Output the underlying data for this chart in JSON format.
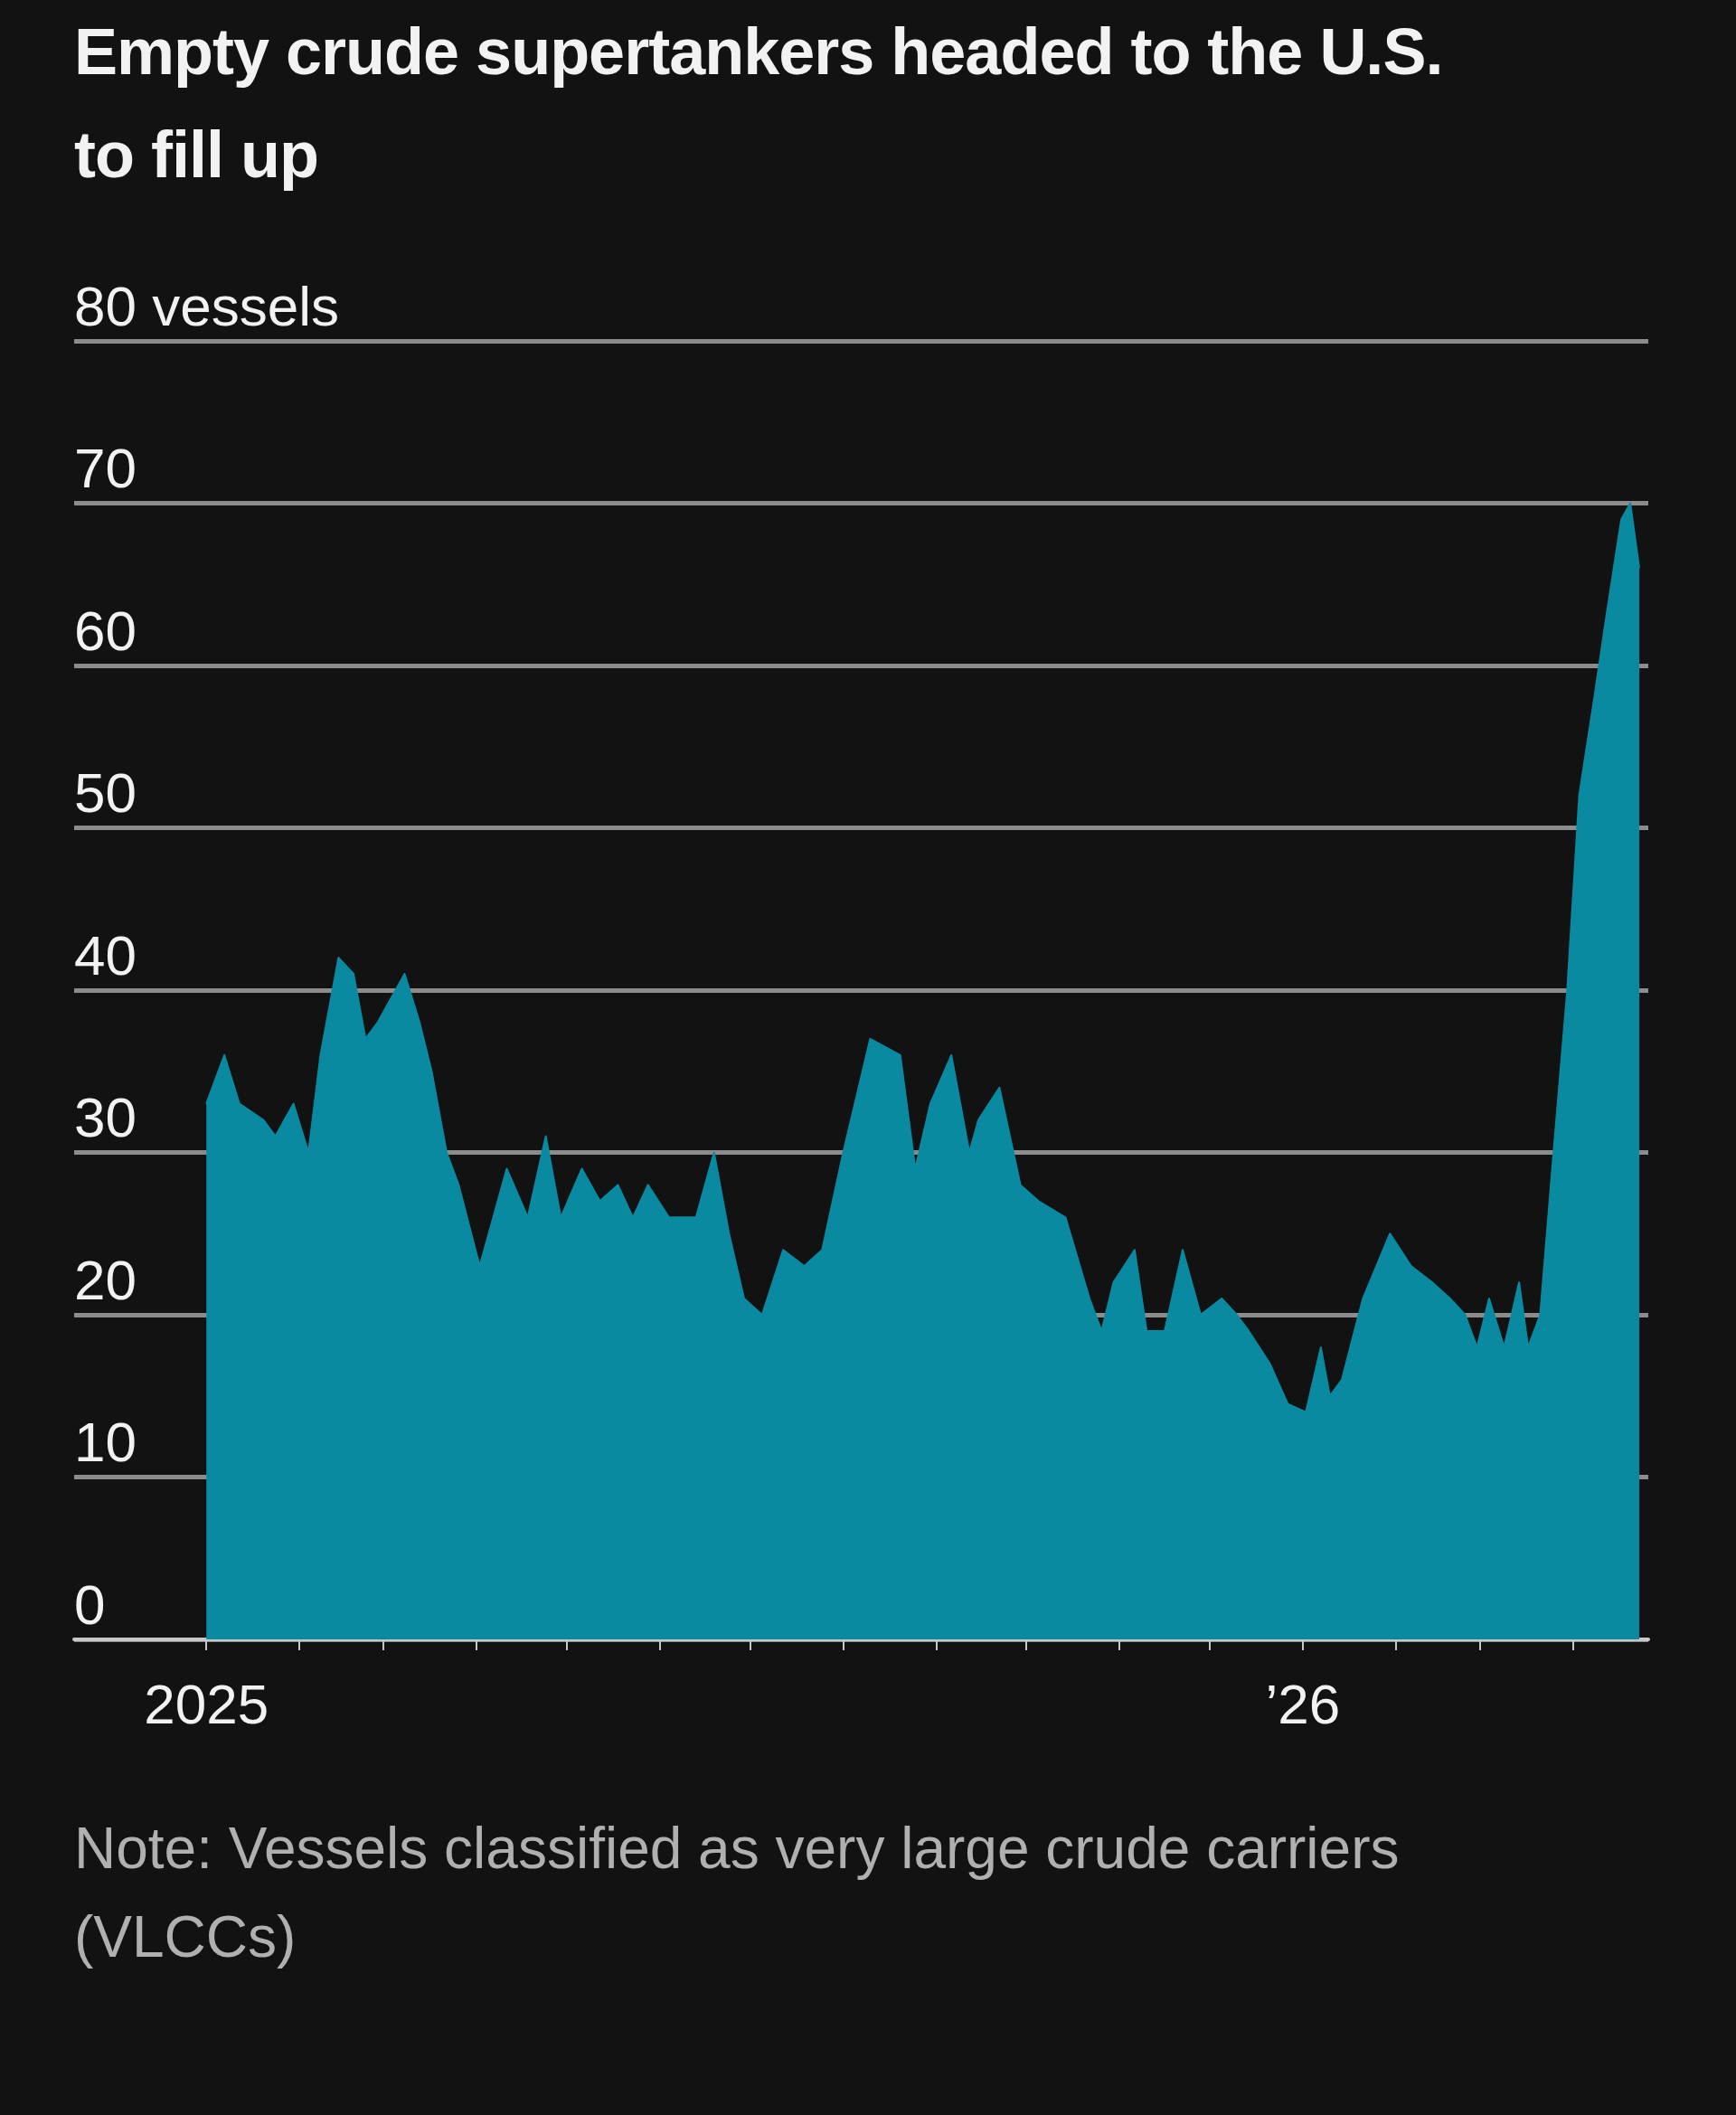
{
  "chart_data": {
    "type": "area",
    "title": "Empty crude supertankers headed to the U.S. to fill up",
    "annotations": [
      "Note: Vessels classified as very large crude carriers (VLCCs)"
    ],
    "x": [
      "2025-01-01",
      "2025-01-07",
      "2025-01-12",
      "2025-01-20",
      "2025-01-24",
      "2025-01-30",
      "2025-02-04",
      "2025-02-08",
      "2025-02-14",
      "2025-02-19",
      "2025-02-23",
      "2025-02-27",
      "2025-03-08",
      "2025-03-13",
      "2025-03-17",
      "2025-03-22",
      "2025-03-26",
      "2025-04-02",
      "2025-04-11",
      "2025-04-18",
      "2025-04-24",
      "2025-04-29",
      "2025-05-06",
      "2025-05-12",
      "2025-05-18",
      "2025-05-23",
      "2025-05-28",
      "2025-06-04",
      "2025-06-13",
      "2025-06-19",
      "2025-06-24",
      "2025-06-29",
      "2025-07-05",
      "2025-07-12",
      "2025-07-19",
      "2025-07-25",
      "2025-08-01",
      "2025-08-10",
      "2025-08-20",
      "2025-08-25",
      "2025-08-30",
      "2025-09-06",
      "2025-09-12",
      "2025-09-15",
      "2025-09-22",
      "2025-09-29",
      "2025-10-05",
      "2025-10-14",
      "2025-10-22",
      "2025-10-26",
      "2025-10-30",
      "2025-11-06",
      "2025-11-10",
      "2025-11-16",
      "2025-11-22",
      "2025-11-28",
      "2025-12-05",
      "2025-12-10",
      "2025-12-14",
      "2025-12-21",
      "2025-12-27",
      "2026-01-02",
      "2026-01-07",
      "2026-01-10",
      "2026-01-14",
      "2026-01-21",
      "2026-01-30",
      "2026-02-06",
      "2026-02-13",
      "2026-02-19",
      "2026-02-24",
      "2026-02-28",
      "2026-03-04",
      "2026-03-09",
      "2026-03-14",
      "2026-03-17",
      "2026-03-21",
      "2026-03-25",
      "2026-03-30",
      "2026-04-03",
      "2026-04-08",
      "2026-04-12",
      "2026-04-17",
      "2026-04-20",
      "2026-04-23"
    ],
    "series": [
      {
        "color": "#0a8aa1",
        "values": [
          33,
          36,
          33,
          32,
          31,
          33,
          30,
          36,
          42,
          41,
          37,
          38,
          41,
          38,
          35,
          30,
          28,
          23,
          29,
          26,
          31,
          26,
          29,
          27,
          28,
          26,
          28,
          26,
          26,
          30,
          25,
          21,
          20,
          24,
          23,
          24,
          30,
          37,
          36,
          29,
          33,
          36,
          30,
          32,
          34,
          28,
          27,
          26,
          21,
          19,
          22,
          24,
          19,
          19,
          24,
          20,
          21,
          20,
          19,
          17,
          14.5,
          14,
          18,
          15,
          16,
          21,
          25,
          23,
          22,
          21,
          20,
          18,
          21,
          18,
          22,
          18,
          20,
          29,
          40,
          52,
          58,
          63,
          69,
          70,
          66
        ]
      }
    ],
    "xlim": [
      "2024-11-18",
      "2026-04-26"
    ],
    "xticks": [
      {
        "value": "2025-01-01",
        "label": "2025"
      },
      {
        "value": "2025-02-01",
        "label": null
      },
      {
        "value": "2025-03-01",
        "label": null
      },
      {
        "value": "2025-04-01",
        "label": null
      },
      {
        "value": "2025-05-01",
        "label": null
      },
      {
        "value": "2025-06-01",
        "label": null
      },
      {
        "value": "2025-07-01",
        "label": null
      },
      {
        "value": "2025-08-01",
        "label": null
      },
      {
        "value": "2025-09-01",
        "label": null
      },
      {
        "value": "2025-10-01",
        "label": null
      },
      {
        "value": "2025-11-01",
        "label": null
      },
      {
        "value": "2025-12-01",
        "label": null
      },
      {
        "value": "2026-01-01",
        "label": "’26"
      },
      {
        "value": "2026-02-01",
        "label": null
      },
      {
        "value": "2026-03-01",
        "label": null
      },
      {
        "value": "2026-04-01",
        "label": null
      }
    ],
    "ylim": [
      0,
      80
    ],
    "yticks": [
      0,
      10,
      20,
      30,
      40,
      50,
      60,
      70,
      {
        "value": 80,
        "label": "80 vessels"
      }
    ],
    "grid": "y",
    "marker": "none"
  }
}
